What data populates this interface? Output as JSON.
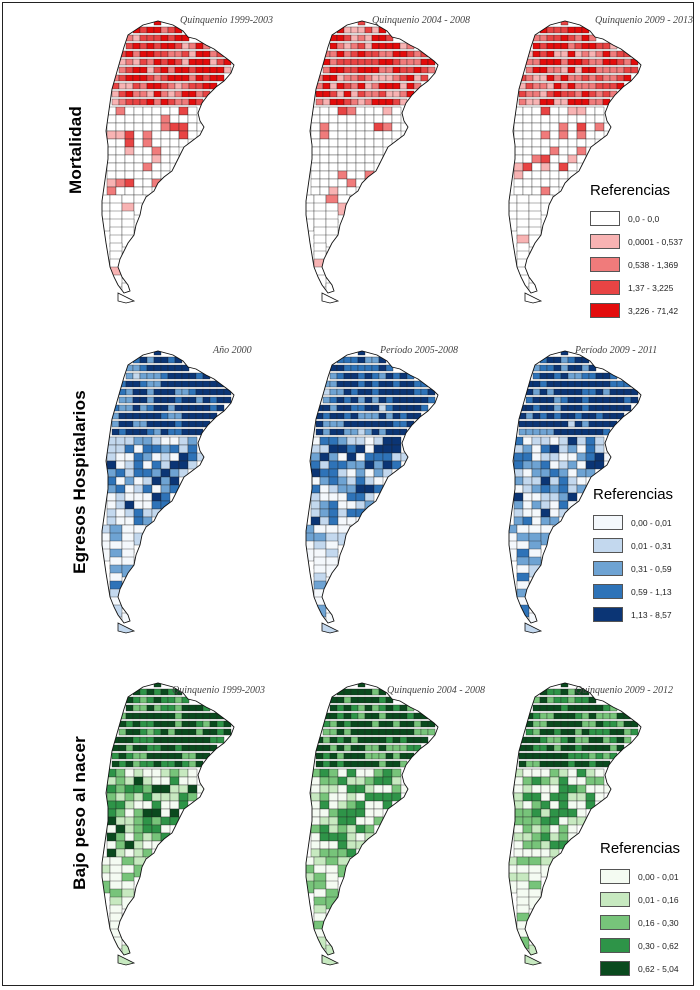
{
  "rows": [
    {
      "label": "Mortalidad",
      "colors": [
        "#ffffff",
        "#f8b3b3",
        "#f07b7b",
        "#e84444",
        "#e30c0c"
      ],
      "panels": [
        {
          "title": "Quinquenio 1999-2003",
          "dominant_class": 2
        },
        {
          "title": "Quinquenio 2004 - 2008",
          "dominant_class": 1
        },
        {
          "title": "Quinquenio 2009 - 2013",
          "dominant_class": 1
        }
      ],
      "legend": {
        "title": "Referencias",
        "items": [
          "0,0 - 0,0",
          "0,0001 - 0,537",
          "0,538 - 1,369",
          "1,37 - 3,225",
          "3,226 - 71,42"
        ]
      }
    },
    {
      "label": "Egresos Hospitalarios",
      "colors": [
        "#f4f8fc",
        "#c3d8ee",
        "#6ea3d3",
        "#2e73b8",
        "#0b3575"
      ],
      "panels": [
        {
          "title": "Año 2000",
          "dominant_class": 3
        },
        {
          "title": "Período 2005-2008",
          "dominant_class": 3
        },
        {
          "title": "Período 2009 - 2011",
          "dominant_class": 3
        }
      ],
      "legend": {
        "title": "Referencias",
        "items": [
          "0,00 - 0,01",
          "0,01 - 0,31",
          "0,31 - 0,59",
          "0,59 - 1,13",
          "1,13 - 8,57"
        ]
      }
    },
    {
      "label": "Bajo peso al nacer",
      "colors": [
        "#f4fbf2",
        "#c7e9c0",
        "#77c47a",
        "#2e9448",
        "#0a4a1e"
      ],
      "panels": [
        {
          "title": "Quinquenio 1999-2003",
          "dominant_class": 3
        },
        {
          "title": "Quinquenio 2004 - 2008",
          "dominant_class": 2
        },
        {
          "title": "Quinquenio 2009 - 2012",
          "dominant_class": 2
        }
      ],
      "legend": {
        "title": "Referencias",
        "items": [
          "0,00 - 0,01",
          "0,01 - 0,16",
          "0,16 - 0,30",
          "0,30 - 0,62",
          "0,62 - 5,04"
        ]
      }
    }
  ]
}
